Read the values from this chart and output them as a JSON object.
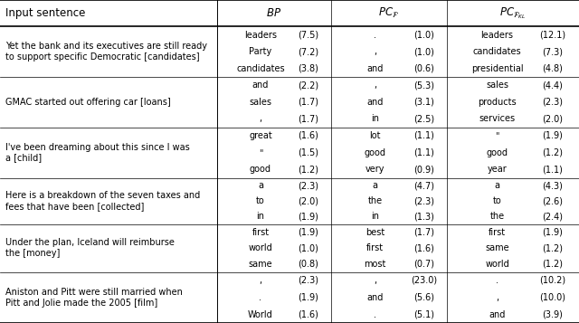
{
  "col_dividers": [
    0.0,
    0.375,
    0.572,
    0.772,
    1.0
  ],
  "header": {
    "sentence_label": "Input sentence",
    "bp_label": "$BP$",
    "pcf_label": "$PC_{\\mathcal{F}}$",
    "pcfkl_label": "$PC_{\\mathcal{F}_{KL}}$"
  },
  "rows": [
    {
      "sentence": "Yet the bank and its executives are still ready\nto support specific Democratic [candidates]",
      "bp": [
        [
          "leaders",
          "7.5"
        ],
        [
          "Party",
          "7.2"
        ],
        [
          "candidates",
          "3.8"
        ]
      ],
      "pcf": [
        [
          ".",
          "1.0"
        ],
        [
          ",",
          "1.0"
        ],
        [
          "and",
          "0.6"
        ]
      ],
      "pcfkl": [
        [
          "leaders",
          "12.1"
        ],
        [
          "candidates",
          "7.3"
        ],
        [
          "presidential",
          "4.8"
        ]
      ]
    },
    {
      "sentence": "GMAC started out offering car [loans]",
      "bp": [
        [
          "and",
          "2.2"
        ],
        [
          "sales",
          "1.7"
        ],
        [
          ",",
          "1.7"
        ]
      ],
      "pcf": [
        [
          ",",
          "5.3"
        ],
        [
          "and",
          "3.1"
        ],
        [
          "in",
          "2.5"
        ]
      ],
      "pcfkl": [
        [
          "sales",
          "4.4"
        ],
        [
          "products",
          "2.3"
        ],
        [
          "services",
          "2.0"
        ]
      ]
    },
    {
      "sentence": "I've been dreaming about this since I was\na [child]",
      "bp": [
        [
          "great",
          "1.6"
        ],
        [
          "\"",
          "1.5"
        ],
        [
          "good",
          "1.2"
        ]
      ],
      "pcf": [
        [
          "lot",
          "1.1"
        ],
        [
          "good",
          "1.1"
        ],
        [
          "very",
          "0.9"
        ]
      ],
      "pcfkl": [
        [
          "\"",
          "1.9"
        ],
        [
          "good",
          "1.2"
        ],
        [
          "year",
          "1.1"
        ]
      ]
    },
    {
      "sentence": "Here is a breakdown of the seven taxes and\nfees that have been [collected]",
      "bp": [
        [
          "a",
          "2.3"
        ],
        [
          "to",
          "2.0"
        ],
        [
          "in",
          "1.9"
        ]
      ],
      "pcf": [
        [
          "a",
          "4.7"
        ],
        [
          "the",
          "2.3"
        ],
        [
          "in",
          "1.3"
        ]
      ],
      "pcfkl": [
        [
          "a",
          "4.3"
        ],
        [
          "to",
          "2.6"
        ],
        [
          "the",
          "2.4"
        ]
      ]
    },
    {
      "sentence": "Under the plan, Iceland will reimburse\nthe [money]",
      "bp": [
        [
          "first",
          "1.9"
        ],
        [
          "world",
          "1.0"
        ],
        [
          "same",
          "0.8"
        ]
      ],
      "pcf": [
        [
          "best",
          "1.7"
        ],
        [
          "first",
          "1.6"
        ],
        [
          "most",
          "0.7"
        ]
      ],
      "pcfkl": [
        [
          "first",
          "1.9"
        ],
        [
          "same",
          "1.2"
        ],
        [
          "world",
          "1.2"
        ]
      ]
    },
    {
      "sentence": "Aniston and Pitt were still married when\nPitt and Jolie made the 2005 [film]",
      "bp": [
        [
          ",",
          "2.3"
        ],
        [
          ".",
          "1.9"
        ],
        [
          "World",
          "1.6"
        ]
      ],
      "pcf": [
        [
          ",",
          "23.0"
        ],
        [
          "and",
          "5.6"
        ],
        [
          ".",
          "5.1"
        ]
      ],
      "pcfkl": [
        [
          ".",
          "10.2"
        ],
        [
          ",",
          "10.0"
        ],
        [
          "and",
          "3.9"
        ]
      ]
    }
  ],
  "fs_header": 8.5,
  "fs_cell": 7.0,
  "fs_sentence": 7.0,
  "row_tops": [
    1.0,
    0.918,
    0.762,
    0.606,
    0.449,
    0.306,
    0.158,
    0.0
  ],
  "thick_lw": 1.2,
  "thin_lw": 0.5,
  "vert_lw": 0.7
}
